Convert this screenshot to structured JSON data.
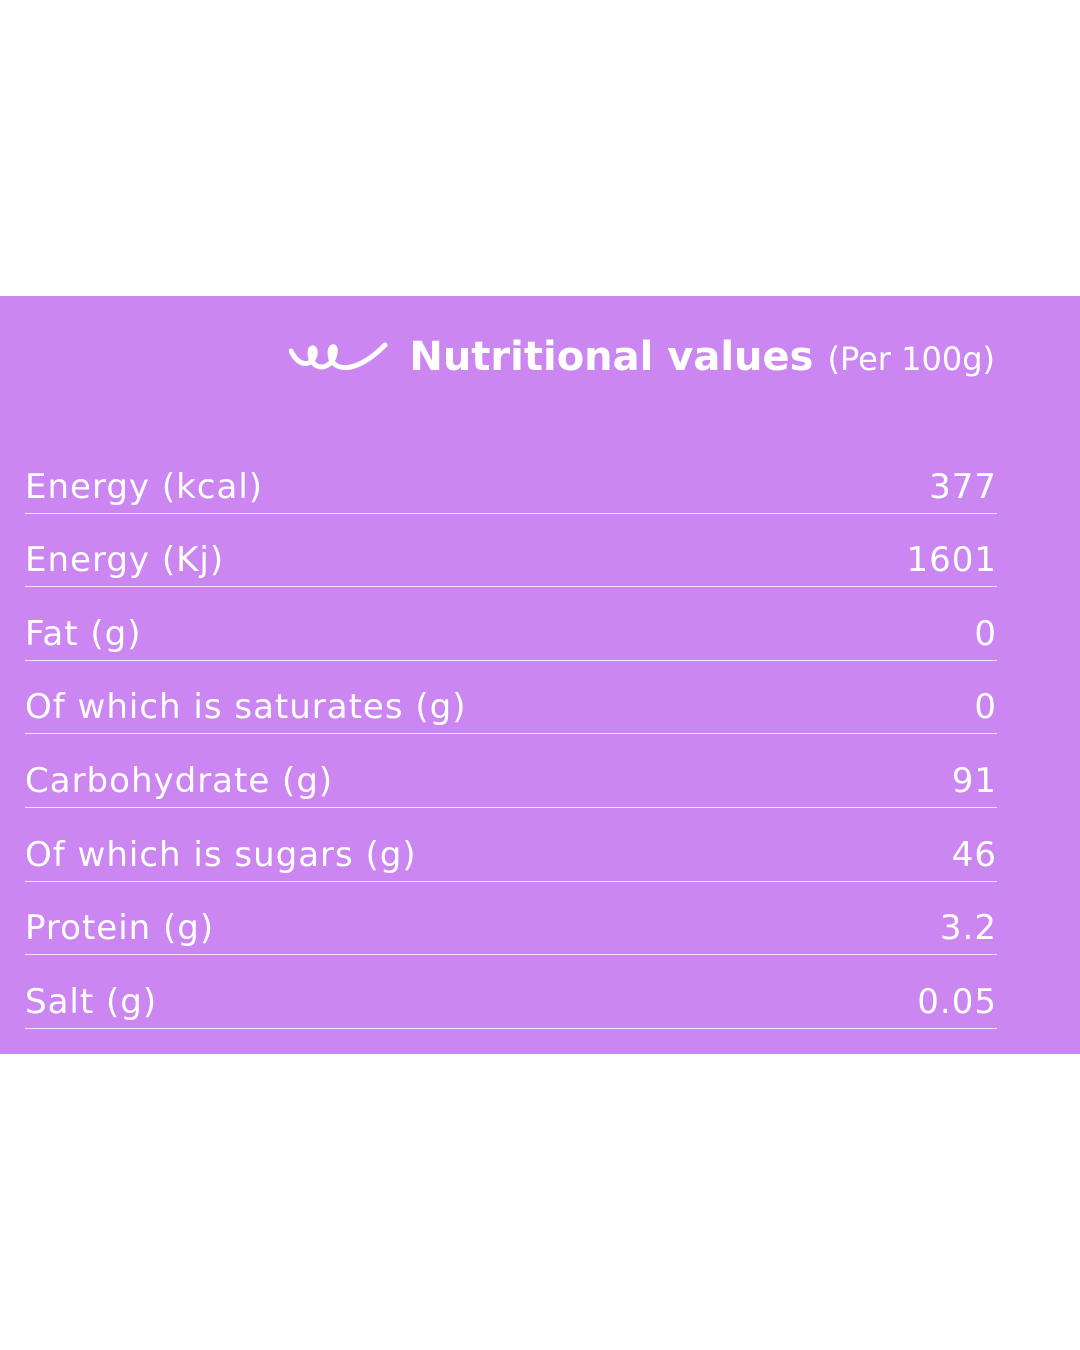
{
  "header": {
    "title": "Nutritional values",
    "subtitle": "(Per 100g)"
  },
  "table": {
    "rows": [
      [
        "Energy (kcal)",
        "377"
      ],
      [
        "Energy (Kj)",
        "1601"
      ],
      [
        "Fat (g)",
        "0"
      ],
      [
        "Of which is saturates (g)",
        "0"
      ],
      [
        "Carbohydrate (g)",
        "91"
      ],
      [
        "Of which is sugars (g)",
        "46"
      ],
      [
        "Protein (g)",
        "3.2"
      ],
      [
        "Salt (g)",
        "0.05"
      ]
    ]
  }
}
